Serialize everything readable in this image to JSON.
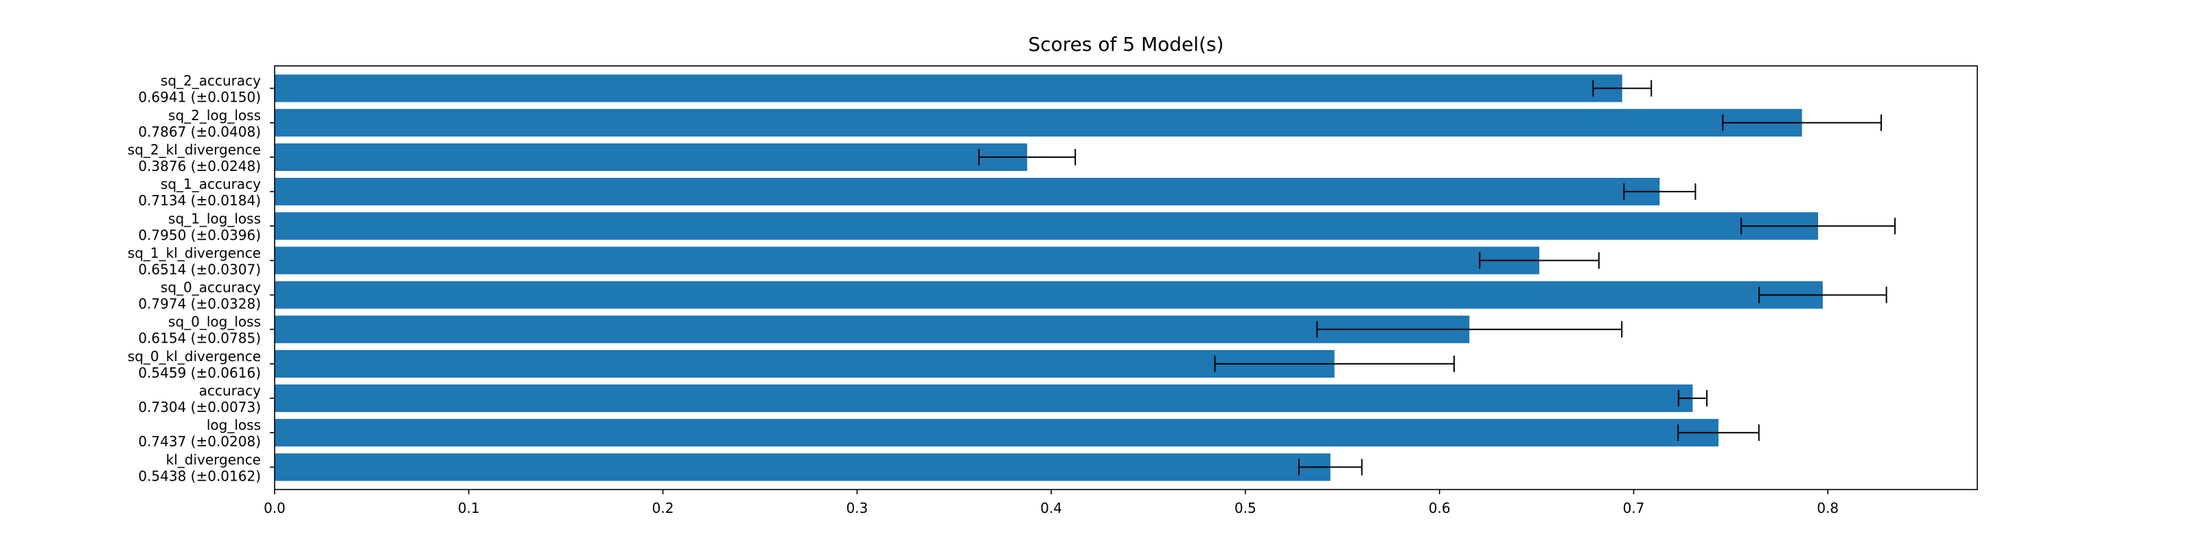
{
  "chart_data": {
    "type": "bar",
    "orientation": "horizontal",
    "title": "Scores of 5 Model(s)",
    "xlabel": "",
    "ylabel": "",
    "xlim": [
      0.0,
      0.877
    ],
    "xticks": [
      0.0,
      0.1,
      0.2,
      0.3,
      0.4,
      0.5,
      0.6,
      0.7,
      0.8
    ],
    "xtick_labels": [
      "0.0",
      "0.1",
      "0.2",
      "0.3",
      "0.4",
      "0.5",
      "0.6",
      "0.7",
      "0.8"
    ],
    "grid": false,
    "bar_color": "#1f77b4",
    "errorbar_color": "#000000",
    "bars": [
      {
        "name": "sq_2_accuracy",
        "label": "0.6941 (±0.0150)",
        "value": 0.6941,
        "error": 0.015
      },
      {
        "name": "sq_2_log_loss",
        "label": "0.7867 (±0.0408)",
        "value": 0.7867,
        "error": 0.0408
      },
      {
        "name": "sq_2_kl_divergence",
        "label": "0.3876 (±0.0248)",
        "value": 0.3876,
        "error": 0.0248
      },
      {
        "name": "sq_1_accuracy",
        "label": "0.7134 (±0.0184)",
        "value": 0.7134,
        "error": 0.0184
      },
      {
        "name": "sq_1_log_loss",
        "label": "0.7950 (±0.0396)",
        "value": 0.795,
        "error": 0.0396
      },
      {
        "name": "sq_1_kl_divergence",
        "label": "0.6514 (±0.0307)",
        "value": 0.6514,
        "error": 0.0307
      },
      {
        "name": "sq_0_accuracy",
        "label": "0.7974 (±0.0328)",
        "value": 0.7974,
        "error": 0.0328
      },
      {
        "name": "sq_0_log_loss",
        "label": "0.6154 (±0.0785)",
        "value": 0.6154,
        "error": 0.0785
      },
      {
        "name": "sq_0_kl_divergence",
        "label": "0.5459 (±0.0616)",
        "value": 0.5459,
        "error": 0.0616
      },
      {
        "name": "accuracy",
        "label": "0.7304 (±0.0073)",
        "value": 0.7304,
        "error": 0.0073
      },
      {
        "name": "log_loss",
        "label": "0.7437 (±0.0208)",
        "value": 0.7437,
        "error": 0.0208
      },
      {
        "name": "kl_divergence",
        "label": "0.5438 (±0.0162)",
        "value": 0.5438,
        "error": 0.0162
      }
    ]
  }
}
